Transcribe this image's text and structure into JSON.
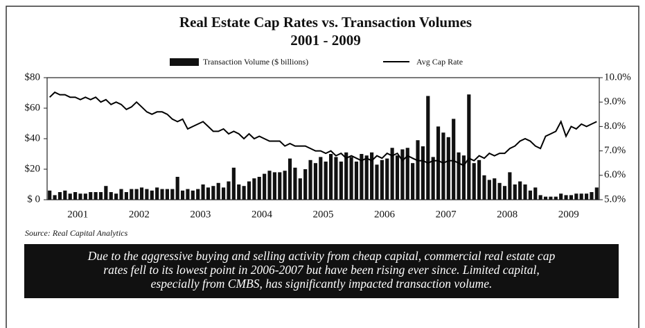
{
  "chart_data": {
    "type": "bar",
    "title": "Real Estate Cap Rates vs. Transaction Volumes",
    "subtitle": "2001 - 2009",
    "source": "Source: Real Capital Analytics",
    "caption": [
      "Due to the aggressive buying and selling activity from cheap capital, commercial real estate cap",
      "rates fell to its lowest point in 2006-2007 but have been rising ever since.  Limited capital,",
      "especially from CMBS, has significantly impacted transaction volume."
    ],
    "categories": [
      null,
      null,
      null,
      null,
      null,
      null,
      "2001",
      null,
      null,
      null,
      null,
      null,
      null,
      null,
      null,
      null,
      null,
      null,
      "2002",
      null,
      null,
      null,
      null,
      null,
      null,
      null,
      null,
      null,
      null,
      null,
      "2003",
      null,
      null,
      null,
      null,
      null,
      null,
      null,
      null,
      null,
      null,
      null,
      "2004",
      null,
      null,
      null,
      null,
      null,
      null,
      null,
      null,
      null,
      null,
      null,
      "2005",
      null,
      null,
      null,
      null,
      null,
      null,
      null,
      null,
      null,
      null,
      null,
      "2006",
      null,
      null,
      null,
      null,
      null,
      null,
      null,
      null,
      null,
      null,
      null,
      "2007",
      null,
      null,
      null,
      null,
      null,
      null,
      null,
      null,
      null,
      null,
      null,
      "2008",
      null,
      null,
      null,
      null,
      null,
      null,
      null,
      null,
      null,
      null,
      null,
      "2009",
      null,
      null,
      null,
      null,
      null
    ],
    "series": [
      {
        "name": "Transaction Volume ($ billions)",
        "type": "bar",
        "color": "#111111",
        "values": [
          6,
          3,
          5,
          6,
          4,
          5,
          4,
          4,
          5,
          5,
          5,
          9,
          5,
          4,
          7,
          5,
          7,
          7,
          8,
          7,
          6,
          8,
          7,
          7,
          7,
          15,
          6,
          7,
          6,
          7,
          10,
          8,
          9,
          11,
          8,
          12,
          21,
          10,
          9,
          12,
          14,
          15,
          17,
          19,
          18,
          18,
          19,
          27,
          21,
          14,
          20,
          26,
          24,
          28,
          25,
          30,
          28,
          25,
          31,
          28,
          25,
          30,
          29,
          31,
          23,
          26,
          27,
          34,
          29,
          33,
          34,
          24,
          39,
          35,
          68,
          28,
          48,
          44,
          41,
          53,
          31,
          29,
          69,
          24,
          26,
          16,
          13,
          14,
          11,
          9,
          18,
          10,
          12,
          10,
          6,
          8,
          3,
          2,
          2,
          2,
          4,
          3,
          3,
          4,
          4,
          4,
          5,
          8
        ]
      },
      {
        "name": "Avg Cap Rate",
        "type": "line",
        "axis": "y2",
        "color": "#000000",
        "values": [
          9.2,
          9.4,
          9.3,
          9.3,
          9.2,
          9.2,
          9.1,
          9.2,
          9.1,
          9.2,
          9.0,
          9.1,
          8.9,
          9.0,
          8.9,
          8.7,
          8.8,
          9.0,
          8.8,
          8.6,
          8.5,
          8.6,
          8.6,
          8.5,
          8.3,
          8.2,
          8.3,
          7.9,
          8.0,
          8.1,
          8.2,
          8.0,
          7.8,
          7.8,
          7.9,
          7.7,
          7.8,
          7.7,
          7.5,
          7.7,
          7.5,
          7.6,
          7.5,
          7.4,
          7.4,
          7.4,
          7.2,
          7.3,
          7.2,
          7.2,
          7.2,
          7.1,
          7.0,
          7.0,
          6.9,
          7.0,
          6.8,
          6.9,
          6.7,
          6.8,
          6.7,
          6.6,
          6.7,
          6.6,
          6.8,
          6.7,
          6.9,
          6.8,
          6.9,
          6.6,
          6.8,
          6.7,
          6.6,
          6.6,
          6.5,
          6.6,
          6.6,
          6.5,
          6.6,
          6.6,
          6.5,
          6.4,
          6.7,
          6.6,
          6.8,
          6.7,
          6.9,
          6.8,
          6.9,
          6.9,
          7.1,
          7.2,
          7.4,
          7.5,
          7.4,
          7.2,
          7.1,
          7.6,
          7.7,
          7.8,
          8.2,
          7.6,
          8.0,
          7.9,
          8.1,
          8.0,
          8.1,
          8.2
        ]
      }
    ],
    "ylim": [
      0,
      80
    ],
    "yticks": [
      {
        "value": 0,
        "label": "$ 0"
      },
      {
        "value": 20,
        "label": "$20"
      },
      {
        "value": 40,
        "label": "$40"
      },
      {
        "value": 60,
        "label": "$60"
      },
      {
        "value": 80,
        "label": "$80"
      }
    ],
    "y2lim": [
      5,
      10
    ],
    "y2ticks": [
      {
        "value": 5,
        "label": "5.0%"
      },
      {
        "value": 6,
        "label": "6.0%"
      },
      {
        "value": 7,
        "label": "7.0%"
      },
      {
        "value": 8,
        "label": "8.0%"
      },
      {
        "value": 9,
        "label": "9.0%"
      },
      {
        "value": 10,
        "label": "10.0%"
      }
    ],
    "grid": false,
    "legend": "top"
  }
}
